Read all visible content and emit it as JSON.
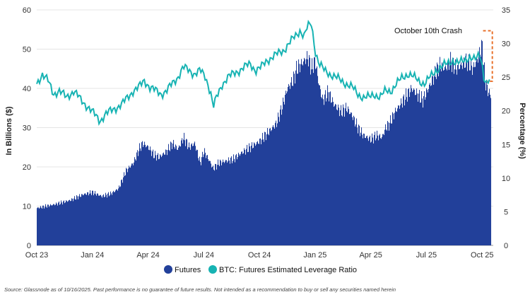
{
  "chart_data": {
    "type": "bar+line",
    "y_left": {
      "label": "In Billions ($)",
      "ylim": [
        0,
        60
      ],
      "ticks": [
        "0",
        "10",
        "20",
        "30",
        "40",
        "50",
        "60"
      ]
    },
    "y_right": {
      "label": "Percentage (%)",
      "ylim": [
        0,
        35
      ],
      "ticks": [
        "0",
        "5",
        "10",
        "15",
        "20",
        "25",
        "30",
        "35"
      ]
    },
    "x_ticks": [
      "Oct 23",
      "Jan 24",
      "Apr 24",
      "Jul 24",
      "Oct 24",
      "Jan 25",
      "Apr 25",
      "Jul 25",
      "Oct 25"
    ],
    "x_ticks_month_index": [
      0,
      3,
      6,
      9,
      12,
      15,
      18,
      21,
      24
    ],
    "x_range_months": [
      0,
      24.6
    ],
    "grid": "horizontal",
    "legend_position": "bottom",
    "series": [
      {
        "name": "Futures",
        "type": "area-bar",
        "axis": "left",
        "color": "#22409a",
        "points": [
          [
            0,
            9.5
          ],
          [
            1,
            10.5
          ],
          [
            1.8,
            11.5
          ],
          [
            2.5,
            13
          ],
          [
            3,
            13.5
          ],
          [
            3.5,
            12.5
          ],
          [
            4,
            13.2
          ],
          [
            4.4,
            14.5
          ],
          [
            4.8,
            19
          ],
          [
            5.2,
            21
          ],
          [
            5.5,
            24.5
          ],
          [
            5.7,
            26
          ],
          [
            6,
            25
          ],
          [
            6.3,
            23
          ],
          [
            6.6,
            22.5
          ],
          [
            7,
            24
          ],
          [
            7.3,
            26
          ],
          [
            7.6,
            24.5
          ],
          [
            7.9,
            27.5
          ],
          [
            8.2,
            25
          ],
          [
            8.5,
            26
          ],
          [
            8.8,
            21
          ],
          [
            9,
            24
          ],
          [
            9.3,
            21.5
          ],
          [
            9.5,
            19.5
          ],
          [
            9.8,
            21
          ],
          [
            10.2,
            21.5
          ],
          [
            10.6,
            22
          ],
          [
            11,
            23.5
          ],
          [
            11.5,
            25
          ],
          [
            12,
            26.5
          ],
          [
            12.5,
            29
          ],
          [
            12.9,
            31
          ],
          [
            13.2,
            35
          ],
          [
            13.5,
            40
          ],
          [
            13.8,
            42
          ],
          [
            14,
            45
          ],
          [
            14.3,
            46.5
          ],
          [
            14.6,
            48
          ],
          [
            14.8,
            45
          ],
          [
            15,
            47
          ],
          [
            15.2,
            41
          ],
          [
            15.4,
            37
          ],
          [
            15.7,
            39
          ],
          [
            16,
            36
          ],
          [
            16.4,
            34
          ],
          [
            16.7,
            35
          ],
          [
            17,
            33
          ],
          [
            17.3,
            30
          ],
          [
            17.6,
            28
          ],
          [
            18,
            27
          ],
          [
            18.3,
            28
          ],
          [
            18.6,
            27.5
          ],
          [
            18.8,
            30
          ],
          [
            19,
            31
          ],
          [
            19.3,
            34
          ],
          [
            19.6,
            36
          ],
          [
            19.9,
            38
          ],
          [
            20.2,
            40
          ],
          [
            20.5,
            38.5
          ],
          [
            20.8,
            37
          ],
          [
            21.1,
            40
          ],
          [
            21.4,
            43
          ],
          [
            21.7,
            46
          ],
          [
            22,
            45
          ],
          [
            22.3,
            47
          ],
          [
            22.6,
            45
          ],
          [
            22.9,
            46
          ],
          [
            23.2,
            47
          ],
          [
            23.5,
            45
          ],
          [
            23.8,
            48
          ],
          [
            24.0,
            51
          ],
          [
            24.1,
            45
          ],
          [
            24.2,
            41
          ],
          [
            24.35,
            39
          ],
          [
            24.5,
            38
          ]
        ]
      },
      {
        "name": "BTC: Futures Estimated Leverage Ratio",
        "type": "line",
        "axis": "right",
        "color": "#17b3b3",
        "points": [
          [
            0,
            24
          ],
          [
            0.3,
            25.5
          ],
          [
            0.6,
            24.5
          ],
          [
            0.9,
            22.5
          ],
          [
            1.2,
            23
          ],
          [
            1.6,
            22
          ],
          [
            2,
            23
          ],
          [
            2.4,
            21.5
          ],
          [
            2.8,
            20.5
          ],
          [
            3.1,
            19.5
          ],
          [
            3.4,
            18.5
          ],
          [
            3.7,
            19.5
          ],
          [
            4,
            20
          ],
          [
            4.3,
            20.5
          ],
          [
            4.6,
            21
          ],
          [
            4.9,
            22
          ],
          [
            5.2,
            23
          ],
          [
            5.5,
            23.5
          ],
          [
            5.8,
            24.5
          ],
          [
            6.1,
            23.5
          ],
          [
            6.4,
            23
          ],
          [
            6.7,
            22.5
          ],
          [
            7,
            23
          ],
          [
            7.3,
            24
          ],
          [
            7.6,
            25
          ],
          [
            7.9,
            26.5
          ],
          [
            8.2,
            26
          ],
          [
            8.5,
            25.5
          ],
          [
            8.8,
            26
          ],
          [
            9.1,
            25
          ],
          [
            9.4,
            22.5
          ],
          [
            9.5,
            20.5
          ],
          [
            9.7,
            22
          ],
          [
            10,
            24
          ],
          [
            10.3,
            25
          ],
          [
            10.6,
            25.5
          ],
          [
            10.9,
            26
          ],
          [
            11.2,
            26.5
          ],
          [
            11.5,
            27
          ],
          [
            11.8,
            26
          ],
          [
            12.1,
            26.5
          ],
          [
            12.4,
            27.5
          ],
          [
            12.7,
            28
          ],
          [
            13,
            28.5
          ],
          [
            13.3,
            29
          ],
          [
            13.6,
            30
          ],
          [
            13.9,
            31
          ],
          [
            14.2,
            32
          ],
          [
            14.4,
            31
          ],
          [
            14.6,
            32.5
          ],
          [
            14.8,
            33
          ],
          [
            14.9,
            31
          ],
          [
            15,
            29
          ],
          [
            15.2,
            27
          ],
          [
            15.5,
            26
          ],
          [
            15.8,
            25.5
          ],
          [
            16.1,
            25
          ],
          [
            16.4,
            24.5
          ],
          [
            16.7,
            24
          ],
          [
            17,
            23.5
          ],
          [
            17.3,
            22.5
          ],
          [
            17.6,
            22
          ],
          [
            17.9,
            22
          ],
          [
            18.2,
            22.5
          ],
          [
            18.5,
            22
          ],
          [
            18.8,
            23
          ],
          [
            19.1,
            23
          ],
          [
            19.4,
            24
          ],
          [
            19.7,
            25
          ],
          [
            20,
            25.5
          ],
          [
            20.3,
            25
          ],
          [
            20.6,
            24.5
          ],
          [
            20.9,
            24
          ],
          [
            21.2,
            25
          ],
          [
            21.5,
            26
          ],
          [
            21.8,
            26.5
          ],
          [
            22.1,
            27
          ],
          [
            22.4,
            27.5
          ],
          [
            22.7,
            27
          ],
          [
            23,
            27.5
          ],
          [
            23.3,
            28
          ],
          [
            23.6,
            27.5
          ],
          [
            23.9,
            28.5
          ],
          [
            24.0,
            27
          ],
          [
            24.1,
            25
          ],
          [
            24.25,
            24
          ],
          [
            24.4,
            24.5
          ]
        ]
      }
    ],
    "annotations": [
      {
        "text": "October 10th Crash",
        "color": "#e8702a",
        "style": "dashed-bracket",
        "from_month": 24.05,
        "to_month": 24.55,
        "right_value_top": 31.9,
        "right_value_bottom": 24.4
      }
    ],
    "source": "Source: Glassnode as of 10/16/2025. Past performance is no guarantee of future results. Not intended as a recommendation to buy or sell any securities named herein"
  }
}
